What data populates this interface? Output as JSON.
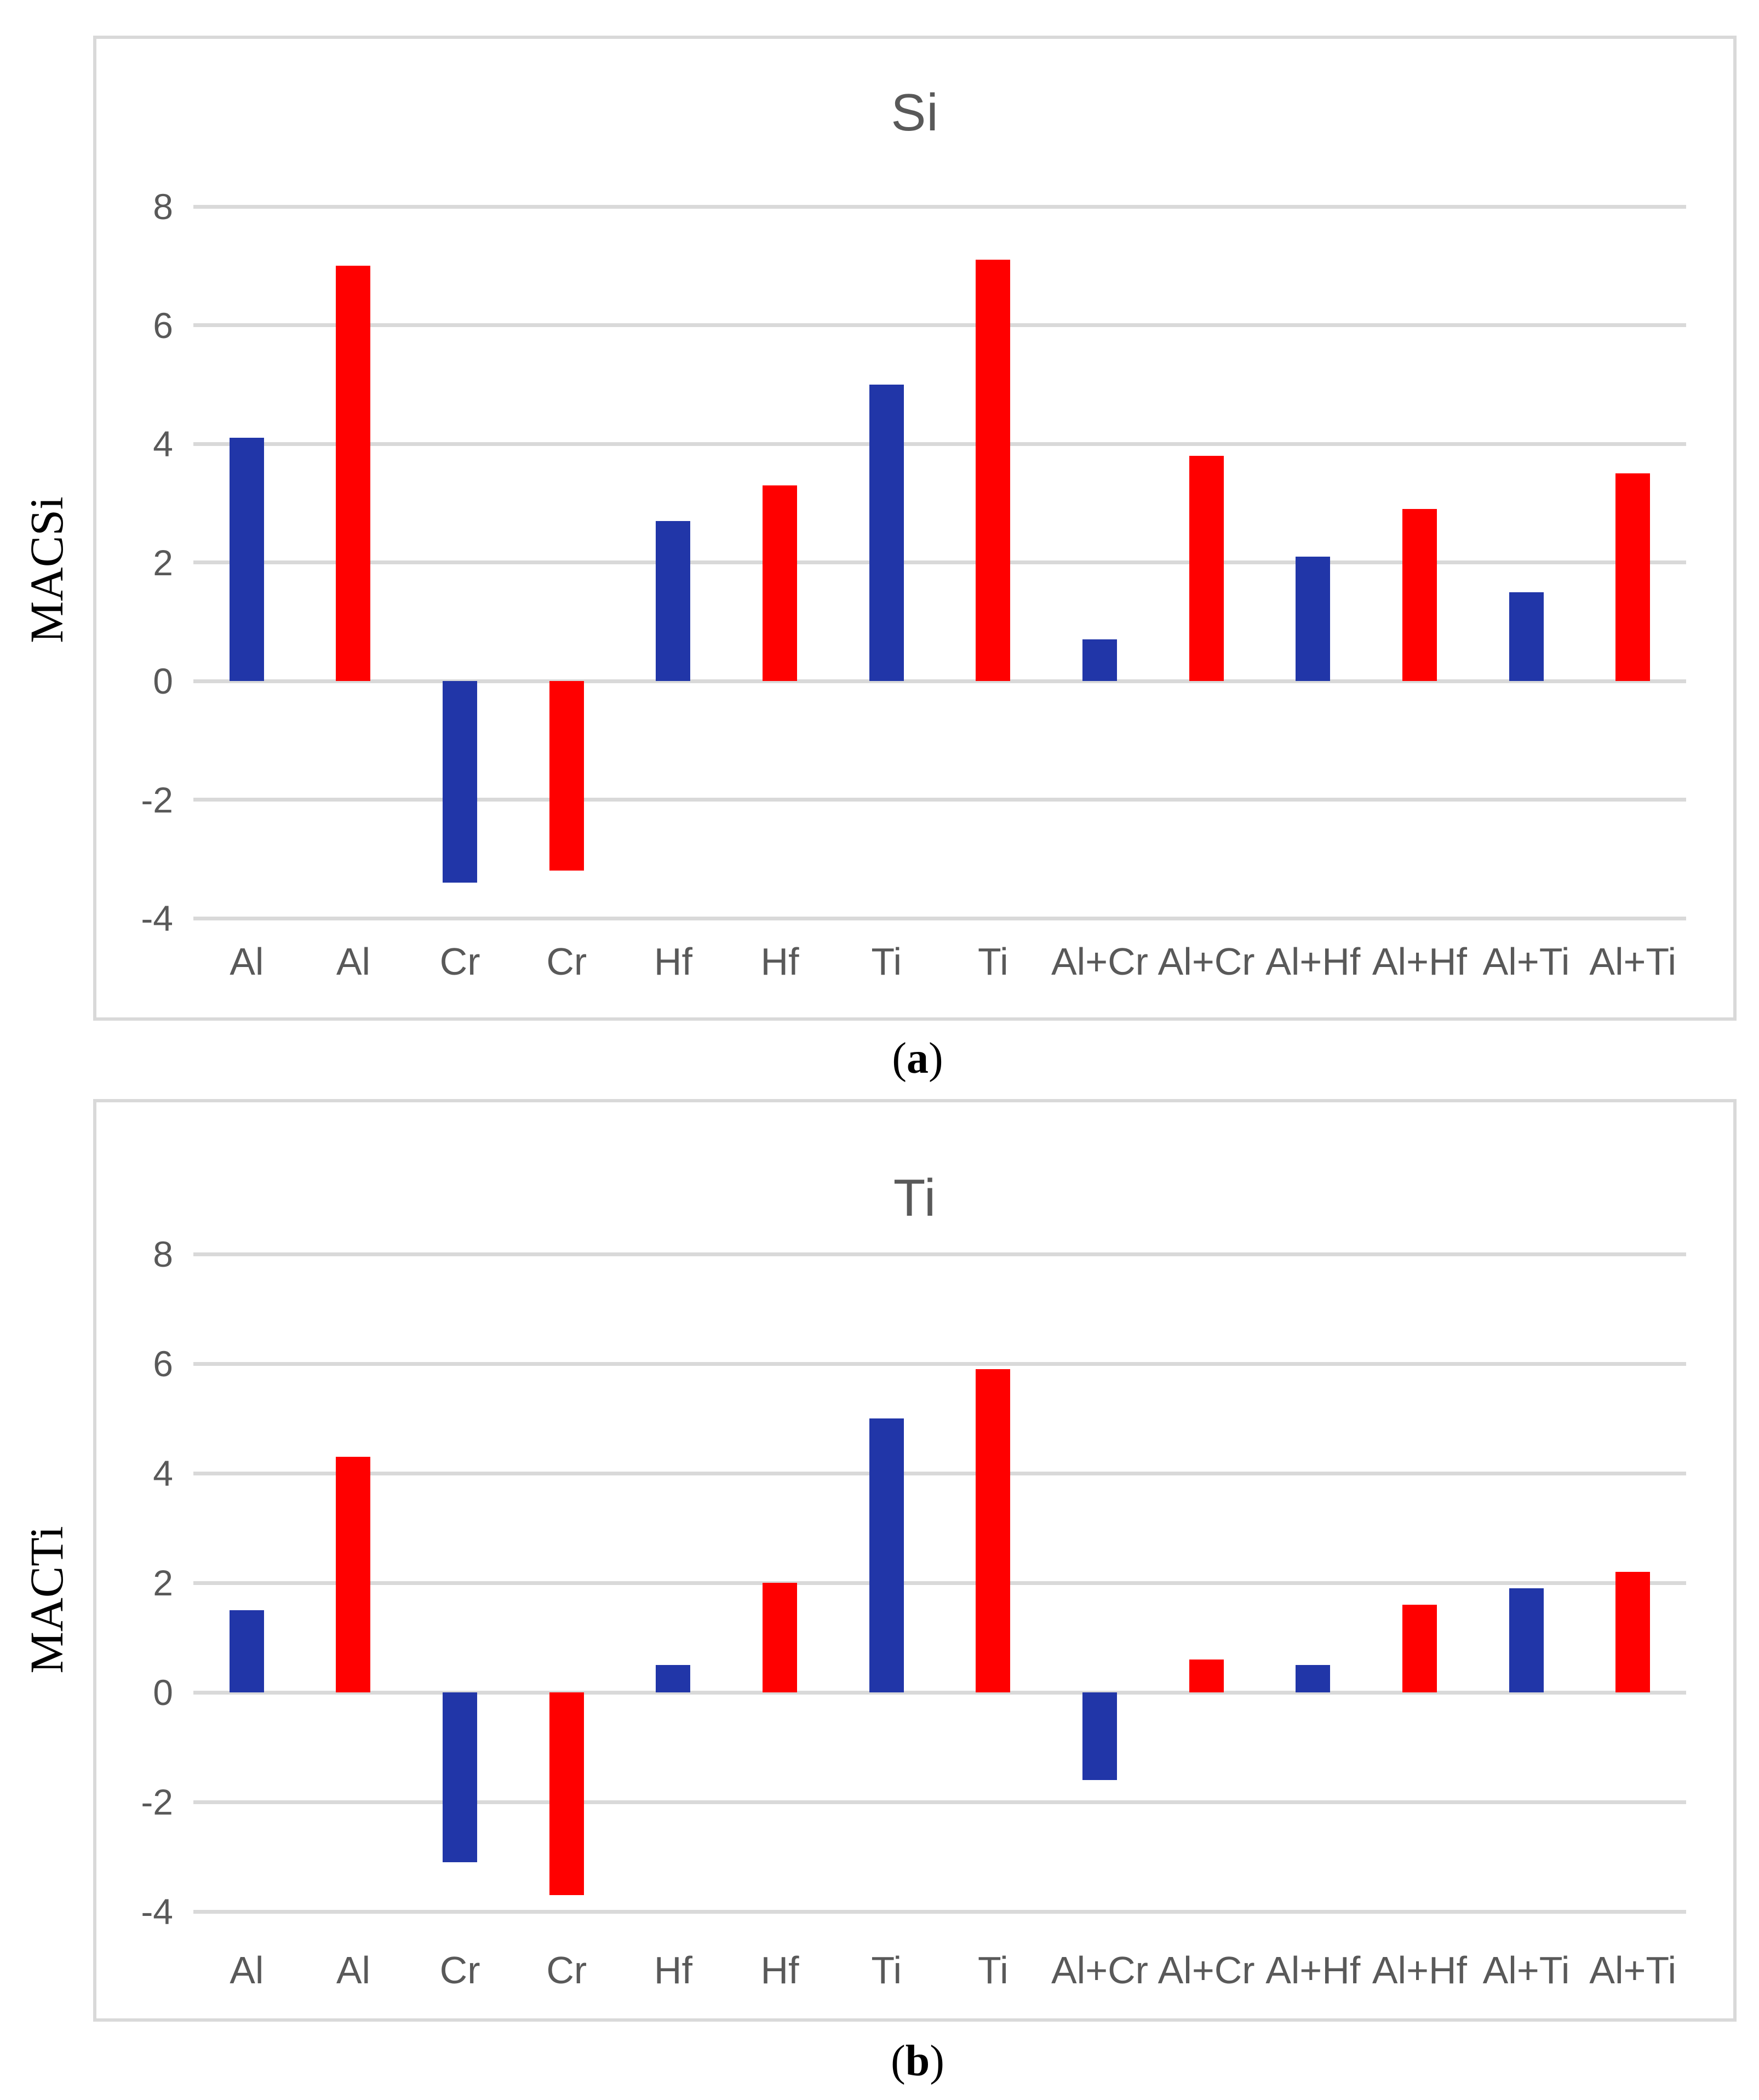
{
  "styles": {
    "bar_blue": "#2136A8",
    "bar_red": "#FF0000",
    "grid_color": "#D9D9D9",
    "text_gray": "#595959"
  },
  "chart_data": [
    {
      "type": "bar",
      "title": "Si",
      "ylabel": "MACSi",
      "caption": "(a)",
      "categories": [
        "Al",
        "Al",
        "Cr",
        "Cr",
        "Hf",
        "Hf",
        "Ti",
        "Ti",
        "Al+Cr",
        "Al+Cr",
        "Al+Hf",
        "Al+Hf",
        "Al+Ti",
        "Al+Ti"
      ],
      "values": [
        4.1,
        7.0,
        -3.4,
        -3.2,
        2.7,
        3.3,
        5.0,
        7.1,
        0.7,
        3.8,
        2.1,
        2.9,
        1.5,
        3.5
      ],
      "series_colors": [
        "#2136A8",
        "#FF0000"
      ],
      "yticks": [
        8,
        6,
        4,
        2,
        0,
        -2,
        -4
      ],
      "ylim": [
        -5,
        9.3
      ],
      "grid": true,
      "legend": null
    },
    {
      "type": "bar",
      "title": "Ti",
      "ylabel": "MACTi",
      "caption": "(b)",
      "categories": [
        "Al",
        "Al",
        "Cr",
        "Cr",
        "Hf",
        "Hf",
        "Ti",
        "Ti",
        "Al+Cr",
        "Al+Cr",
        "Al+Hf",
        "Al+Hf",
        "Al+Ti",
        "Al+Ti"
      ],
      "values": [
        1.5,
        4.3,
        -3.1,
        -3.7,
        0.5,
        2.0,
        5.0,
        5.9,
        -1.6,
        0.6,
        0.5,
        1.6,
        1.9,
        2.2
      ],
      "series_colors": [
        "#2136A8",
        "#FF0000"
      ],
      "yticks": [
        8,
        6,
        4,
        2,
        0,
        -2,
        -4
      ],
      "ylim": [
        -5,
        9.3
      ],
      "grid": true,
      "legend": null
    }
  ]
}
